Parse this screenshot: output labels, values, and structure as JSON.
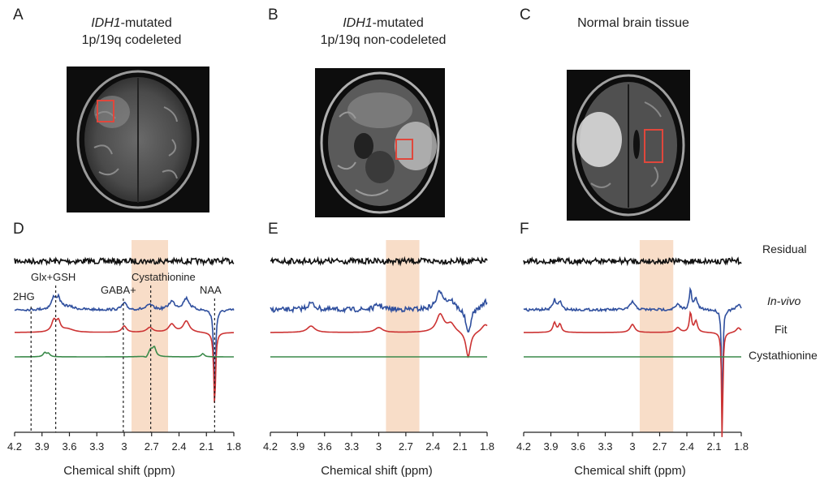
{
  "panels_top": [
    {
      "letter": "A",
      "title_italic": "IDH1",
      "title_rest": "-mutated",
      "title_line2": "1p/19q codeleted"
    },
    {
      "letter": "B",
      "title_italic": "IDH1",
      "title_rest": "-mutated",
      "title_line2": "1p/19q non-codeleted"
    },
    {
      "letter": "C",
      "title_line1": "Normal brain tissue"
    }
  ],
  "panels_bottom": [
    {
      "letter": "D"
    },
    {
      "letter": "E"
    },
    {
      "letter": "F"
    }
  ],
  "peak_labels": [
    "2HG",
    "Glx+GSH",
    "GABA+",
    "Cystathionine",
    "NAA"
  ],
  "legend": {
    "residual": "Residual",
    "invivo": "In-vivo",
    "fit": "Fit",
    "cystathionine": "Cystathionine"
  },
  "colors": {
    "residual": "#111111",
    "invivo": "#2f4f9e",
    "fit": "#cc3333",
    "cystathionine": "#3a8a4a",
    "highlight": "#f6d2b6",
    "roi": "#e0473c"
  },
  "chart_data": [
    {
      "type": "line",
      "panel": "D",
      "xlabel": "Chemical shift (ppm)",
      "x_ticks": [
        "4.2",
        "3.9",
        "3.6",
        "3.3",
        "3",
        "2.7",
        "2.4",
        "2.1",
        "1.8"
      ],
      "xlim": [
        4.2,
        1.8
      ],
      "highlight_ppm": [
        2.92,
        2.52
      ],
      "series": [
        {
          "name": "Residual"
        },
        {
          "name": "In-vivo",
          "peaks_ppm": [
            3.75,
            3.0,
            2.7,
            2.3,
            2.01
          ]
        },
        {
          "name": "Fit",
          "peaks_ppm": [
            3.75,
            3.0,
            2.7,
            2.3,
            2.01
          ]
        },
        {
          "name": "Cystathionine",
          "peaks_ppm": [
            3.85,
            2.7,
            2.1
          ]
        }
      ],
      "peak_markers_ppm": {
        "2HG": 4.02,
        "Glx+GSH": 3.75,
        "GABA+": 3.01,
        "Cystathionine": 2.71,
        "NAA": 2.01
      }
    },
    {
      "type": "line",
      "panel": "E",
      "xlabel": "Chemical shift (ppm)",
      "x_ticks": [
        "4.2",
        "3.9",
        "3.6",
        "3.3",
        "3",
        "2.7",
        "2.4",
        "2.1",
        "1.8"
      ],
      "xlim": [
        4.2,
        1.8
      ],
      "highlight_ppm": [
        2.92,
        2.55
      ],
      "series": [
        {
          "name": "Residual"
        },
        {
          "name": "In-vivo",
          "peaks_ppm": [
            3.75,
            3.0,
            2.3,
            2.01
          ]
        },
        {
          "name": "Fit",
          "peaks_ppm": [
            3.75,
            3.0,
            2.3,
            2.01
          ]
        },
        {
          "name": "Cystathionine"
        }
      ]
    },
    {
      "type": "line",
      "panel": "F",
      "xlabel": "Chemical shift (ppm)",
      "x_ticks": [
        "4.2",
        "3.9",
        "3.6",
        "3.3",
        "3",
        "2.7",
        "2.4",
        "2.1",
        "1.8"
      ],
      "xlim": [
        4.2,
        1.8
      ],
      "highlight_ppm": [
        2.92,
        2.55
      ],
      "series": [
        {
          "name": "Residual"
        },
        {
          "name": "In-vivo",
          "peaks_ppm": [
            3.85,
            3.0,
            2.35,
            2.01
          ]
        },
        {
          "name": "Fit",
          "peaks_ppm": [
            3.85,
            3.0,
            2.35,
            2.01
          ]
        },
        {
          "name": "Cystathionine"
        }
      ]
    }
  ]
}
